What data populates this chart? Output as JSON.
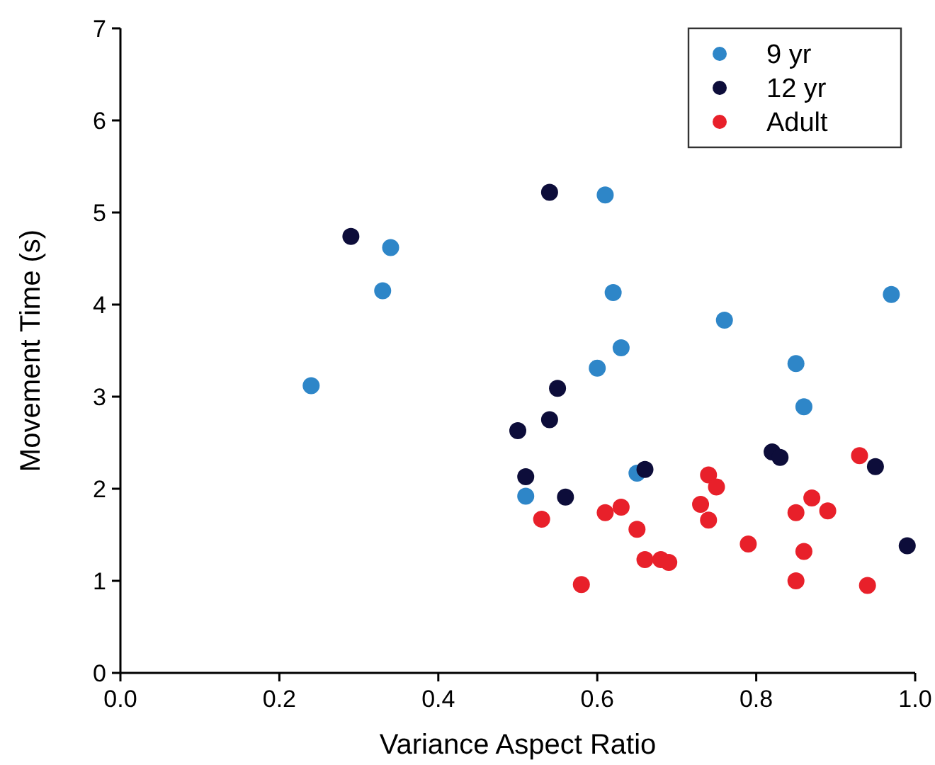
{
  "chart_data": {
    "type": "scatter",
    "xlabel": "Variance Aspect Ratio",
    "ylabel": "Movement Time (s)",
    "xlim": [
      0,
      1
    ],
    "ylim": [
      0,
      7
    ],
    "xticks": [
      {
        "value": 0,
        "label": "0.0"
      },
      {
        "value": 0.2,
        "label": "0.2"
      },
      {
        "value": 0.4,
        "label": "0.4"
      },
      {
        "value": 0.6,
        "label": "0.6"
      },
      {
        "value": 0.8,
        "label": "0.8"
      },
      {
        "value": 1,
        "label": "1.0"
      }
    ],
    "yticks": [
      0,
      1,
      2,
      3,
      4,
      5,
      6,
      7
    ],
    "legend": "top right",
    "marker": "circle",
    "grid": false,
    "series": [
      {
        "name": "9 yr",
        "color": "#2e86c8",
        "x": [
          0.24,
          0.33,
          0.34,
          0.51,
          0.6,
          0.61,
          0.62,
          0.63,
          0.65,
          0.76,
          0.85,
          0.86,
          0.97
        ],
        "values": [
          3.12,
          4.15,
          4.62,
          1.92,
          3.31,
          5.19,
          4.13,
          3.53,
          2.17,
          3.83,
          3.36,
          2.89,
          4.11
        ]
      },
      {
        "name": "12 yr",
        "color": "#0d0d3a",
        "x": [
          0.29,
          0.5,
          0.51,
          0.54,
          0.54,
          0.55,
          0.56,
          0.66,
          0.82,
          0.83,
          0.95,
          0.99
        ],
        "values": [
          4.74,
          2.63,
          2.13,
          2.75,
          5.22,
          3.09,
          1.91,
          2.21,
          2.4,
          2.34,
          2.24,
          1.38
        ]
      },
      {
        "name": "Adult",
        "color": "#e8202a",
        "x": [
          0.53,
          0.58,
          0.61,
          0.63,
          0.65,
          0.66,
          0.68,
          0.69,
          0.73,
          0.74,
          0.74,
          0.75,
          0.79,
          0.85,
          0.85,
          0.86,
          0.87,
          0.89,
          0.93,
          0.94
        ],
        "values": [
          1.67,
          0.96,
          1.74,
          1.8,
          1.56,
          1.23,
          1.23,
          1.2,
          1.83,
          2.15,
          1.66,
          2.02,
          1.4,
          1.74,
          1.0,
          1.32,
          1.9,
          1.76,
          2.36,
          0.95
        ]
      }
    ]
  }
}
